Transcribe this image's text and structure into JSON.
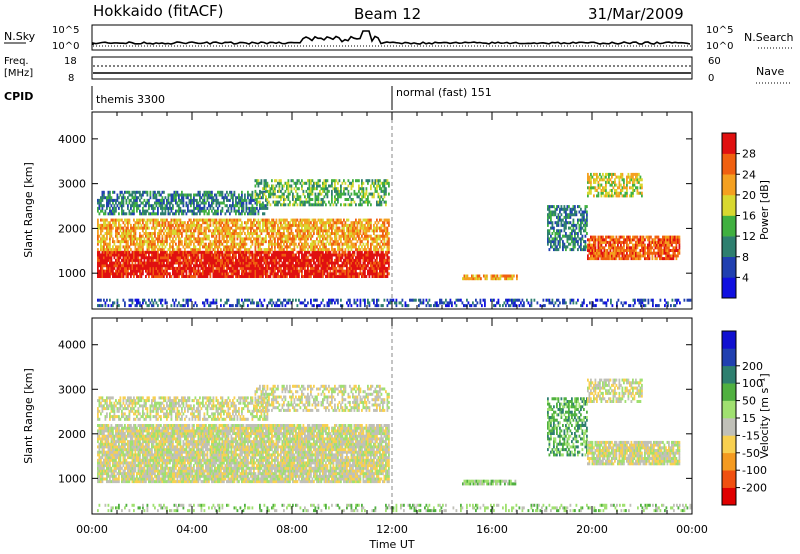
{
  "header": {
    "station": "Hokkaido (fitACF)",
    "beam": "Beam 12",
    "date": "31/Mar/2009"
  },
  "top_panels": {
    "nsky_label": "N.Sky",
    "nsky_ticks": [
      "10^5",
      "10^0"
    ],
    "nsearch_label": "N.Search",
    "freq_label_1": "Freq.",
    "freq_label_2": "[MHz]",
    "freq_ticks": [
      "18",
      "8"
    ],
    "nave_ticks": [
      "60",
      "0"
    ],
    "nave_label": "Nave",
    "cpid_label": "CPID",
    "cpid_segments": [
      {
        "name": "themis 3300",
        "start_hour": 0
      },
      {
        "name": "normal (fast) 151",
        "start_hour": 12
      }
    ]
  },
  "colors": {
    "power_scale": [
      "#1010e0",
      "#2040b0",
      "#2e7f6f",
      "#40b040",
      "#d8d830",
      "#f4a020",
      "#f06010",
      "#e01010"
    ],
    "velocity_scale": [
      "#e00000",
      "#f05010",
      "#f49a20",
      "#f8d050",
      "#c0c0b8",
      "#a0e070",
      "#50b040",
      "#2e7f6f",
      "#2040b0",
      "#1010d0"
    ]
  },
  "chart_data": [
    {
      "type": "heatmap",
      "name": "power",
      "xlabel": "",
      "ylabel": "Slant Range [km]",
      "xlim": [
        0,
        24
      ],
      "ylim": [
        200,
        4600
      ],
      "yticks": [
        1000,
        2000,
        3000,
        4000
      ],
      "colorbar_label": "Power [dB]",
      "colorbar_ticks": [
        "4",
        "8",
        "12",
        "16",
        "20",
        "24",
        "28"
      ],
      "bands": [
        {
          "t0": 0.2,
          "t1": 11.9,
          "r0": 900,
          "r1": 1500,
          "level": 7,
          "density": 0.9
        },
        {
          "t0": 0.2,
          "t1": 11.9,
          "r0": 1500,
          "r1": 2200,
          "level": 5,
          "density": 0.7
        },
        {
          "t0": 0.2,
          "t1": 7.0,
          "r0": 2300,
          "r1": 2800,
          "level": 2,
          "density": 0.6
        },
        {
          "t0": 6.5,
          "t1": 11.9,
          "r0": 2500,
          "r1": 3100,
          "level": 3,
          "density": 0.5
        },
        {
          "t0": 14.8,
          "t1": 17.0,
          "r0": 850,
          "r1": 950,
          "level": 5,
          "density": 0.8
        },
        {
          "t0": 18.2,
          "t1": 19.8,
          "r0": 1500,
          "r1": 2500,
          "level": 2,
          "density": 0.6
        },
        {
          "t0": 19.8,
          "t1": 23.5,
          "r0": 1300,
          "r1": 1800,
          "level": 6,
          "density": 0.85
        },
        {
          "t0": 19.8,
          "t1": 22.0,
          "r0": 2700,
          "r1": 3200,
          "level": 4,
          "density": 0.6
        },
        {
          "t0": 0.2,
          "t1": 23.9,
          "r0": 250,
          "r1": 400,
          "level": 1,
          "density": 0.4
        }
      ]
    },
    {
      "type": "heatmap",
      "name": "velocity",
      "xlabel": "Time UT",
      "ylabel": "Slant Range [km]",
      "xlim": [
        0,
        24
      ],
      "ylim": [
        200,
        4600
      ],
      "yticks": [
        1000,
        2000,
        3000,
        4000
      ],
      "xticks": [
        "00:00",
        "04:00",
        "08:00",
        "12:00",
        "16:00",
        "20:00",
        "00:00"
      ],
      "colorbar_label": "Velocity [m s⁻¹]",
      "colorbar_ticks": [
        "-200",
        "-100",
        "-50",
        "-15",
        "15",
        "50",
        "100",
        "200"
      ],
      "bands": [
        {
          "t0": 0.2,
          "t1": 11.9,
          "r0": 900,
          "r1": 2200,
          "level": 4,
          "density": 0.9
        },
        {
          "t0": 0.2,
          "t1": 7.0,
          "r0": 2300,
          "r1": 2800,
          "level": 4,
          "density": 0.6
        },
        {
          "t0": 6.5,
          "t1": 11.9,
          "r0": 2500,
          "r1": 3100,
          "level": 4,
          "density": 0.5
        },
        {
          "t0": 14.8,
          "t1": 17.0,
          "r0": 850,
          "r1": 950,
          "level": 5,
          "density": 0.8
        },
        {
          "t0": 18.2,
          "t1": 19.8,
          "r0": 1500,
          "r1": 2800,
          "level": 6,
          "density": 0.5
        },
        {
          "t0": 19.8,
          "t1": 23.5,
          "r0": 1300,
          "r1": 1800,
          "level": 4,
          "density": 0.85
        },
        {
          "t0": 19.8,
          "t1": 22.0,
          "r0": 2700,
          "r1": 3200,
          "level": 4,
          "density": 0.6
        },
        {
          "t0": 0.2,
          "t1": 23.9,
          "r0": 250,
          "r1": 400,
          "level": 5,
          "density": 0.3
        }
      ]
    }
  ]
}
